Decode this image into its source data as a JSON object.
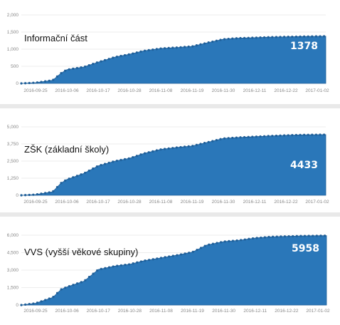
{
  "chart_data": [
    {
      "type": "area",
      "title": "Informační část",
      "value_label": "1378",
      "color": "#2a77b9",
      "ylim": [
        0,
        2000
      ],
      "yticks": [
        "0",
        "500",
        "1,000",
        "1,500",
        "2,000"
      ],
      "xticks": [
        "2016-09-25",
        "2016-10-06",
        "2016-10-17",
        "2016-10-28",
        "2016-11-08",
        "2016-11-19",
        "2016-11-30",
        "2016-12-11",
        "2016-12-22",
        "2017-01-02"
      ],
      "x_start": "2016-09-20",
      "x_end": "2017-01-05",
      "series": [
        {
          "x": [
            "2016-09-20",
            "2016-09-25",
            "2016-10-01",
            "2016-10-04",
            "2016-10-06",
            "2016-10-12",
            "2016-10-17",
            "2016-10-23",
            "2016-10-28",
            "2016-11-02",
            "2016-11-08",
            "2016-11-14",
            "2016-11-19",
            "2016-11-24",
            "2016-11-30",
            "2016-12-05",
            "2016-12-11",
            "2016-12-16",
            "2016-12-22",
            "2016-12-27",
            "2017-01-02",
            "2017-01-05"
          ],
          "values": [
            0,
            20,
            90,
            300,
            400,
            480,
            620,
            770,
            850,
            950,
            1020,
            1050,
            1080,
            1180,
            1290,
            1320,
            1335,
            1350,
            1360,
            1368,
            1375,
            1378
          ]
        }
      ]
    },
    {
      "type": "area",
      "title": "ZŠK (základní školy)",
      "value_label": "4433",
      "color": "#2a77b9",
      "ylim": [
        0,
        5000
      ],
      "yticks": [
        "0",
        "1,250",
        "2,500",
        "3,750",
        "5,000"
      ],
      "xticks": [
        "2016-09-25",
        "2016-10-06",
        "2016-10-17",
        "2016-10-28",
        "2016-11-08",
        "2016-11-19",
        "2016-11-30",
        "2016-12-11",
        "2016-12-22",
        "2017-01-02"
      ],
      "x_start": "2016-09-20",
      "x_end": "2017-01-05",
      "series": [
        {
          "x": [
            "2016-09-20",
            "2016-09-25",
            "2016-10-01",
            "2016-10-04",
            "2016-10-06",
            "2016-10-12",
            "2016-10-17",
            "2016-10-23",
            "2016-10-28",
            "2016-11-02",
            "2016-11-08",
            "2016-11-14",
            "2016-11-19",
            "2016-11-24",
            "2016-11-30",
            "2016-12-05",
            "2016-12-11",
            "2016-12-16",
            "2016-12-22",
            "2016-12-27",
            "2017-01-02",
            "2017-01-05"
          ],
          "values": [
            0,
            50,
            250,
            900,
            1150,
            1600,
            2150,
            2500,
            2700,
            3050,
            3350,
            3500,
            3600,
            3850,
            4150,
            4220,
            4280,
            4330,
            4380,
            4410,
            4425,
            4433
          ]
        }
      ]
    },
    {
      "type": "area",
      "title": "VVS (vyšší věkové skupiny)",
      "value_label": "5958",
      "color": "#2a77b9",
      "ylim": [
        0,
        6000
      ],
      "yticks": [
        "0",
        "1,500",
        "3,000",
        "4,500",
        "6,000"
      ],
      "xticks": [
        "2016-09-25",
        "2016-10-06",
        "2016-10-17",
        "2016-10-28",
        "2016-11-08",
        "2016-11-19",
        "2016-11-30",
        "2016-12-11",
        "2016-12-22",
        "2017-01-02"
      ],
      "x_start": "2016-09-20",
      "x_end": "2017-01-05",
      "series": [
        {
          "x": [
            "2016-09-20",
            "2016-09-25",
            "2016-10-01",
            "2016-10-04",
            "2016-10-06",
            "2016-10-12",
            "2016-10-17",
            "2016-10-23",
            "2016-10-28",
            "2016-11-02",
            "2016-11-08",
            "2016-11-14",
            "2016-11-19",
            "2016-11-24",
            "2016-11-30",
            "2016-12-05",
            "2016-12-11",
            "2016-12-16",
            "2016-12-22",
            "2016-12-27",
            "2017-01-02",
            "2017-01-05"
          ],
          "values": [
            0,
            150,
            650,
            1350,
            1550,
            2050,
            3050,
            3350,
            3500,
            3800,
            4050,
            4300,
            4550,
            5150,
            5450,
            5550,
            5750,
            5850,
            5900,
            5930,
            5950,
            5958
          ]
        }
      ]
    }
  ]
}
